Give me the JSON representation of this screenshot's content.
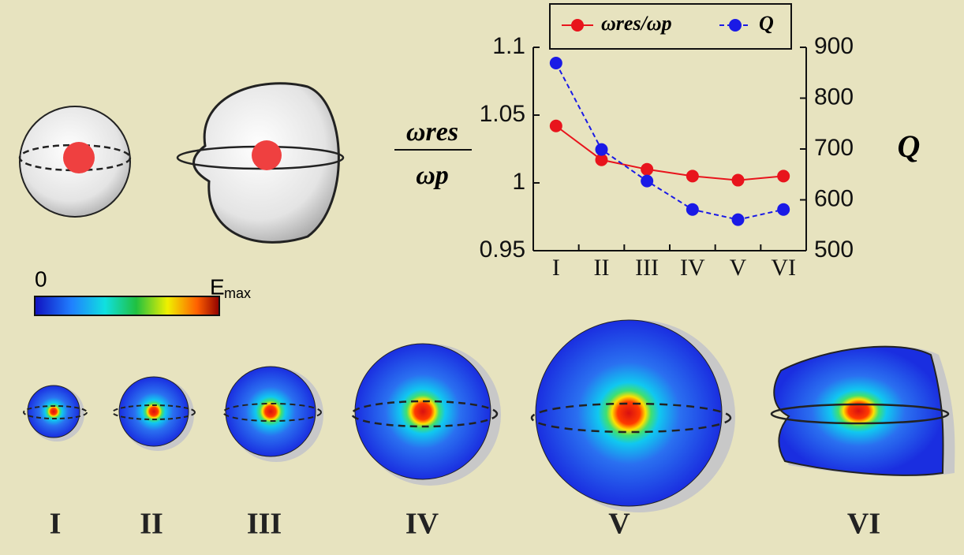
{
  "chart_data": {
    "type": "line",
    "categories": [
      "I",
      "II",
      "III",
      "IV",
      "V",
      "VI"
    ],
    "ylabel_numerator": "ωres",
    "ylabel_denominator": "ωp",
    "y2label": "Q",
    "series": [
      {
        "name": "ωres/ωp",
        "color": "#e8141c",
        "dashed": false,
        "values": [
          1.042,
          1.017,
          1.01,
          1.005,
          1.002,
          1.005
        ]
      },
      {
        "name": "Q",
        "color": "#1a1ae6",
        "dashed": true,
        "axis": "y2",
        "values": [
          869,
          699,
          637,
          581,
          561,
          581
        ]
      }
    ],
    "ylim": [
      0.95,
      1.1
    ],
    "yticks": [
      0.95,
      1,
      1.05,
      1.1
    ],
    "y2lim": [
      500,
      900
    ],
    "y2ticks": [
      500,
      600,
      700,
      800,
      900
    ],
    "legend": "top"
  },
  "colorbar": {
    "min_label": "0",
    "max_label": "E",
    "max_label_subscript": "max"
  },
  "figure_labels": [
    "I",
    "II",
    "III",
    "IV",
    "V",
    "VI"
  ]
}
